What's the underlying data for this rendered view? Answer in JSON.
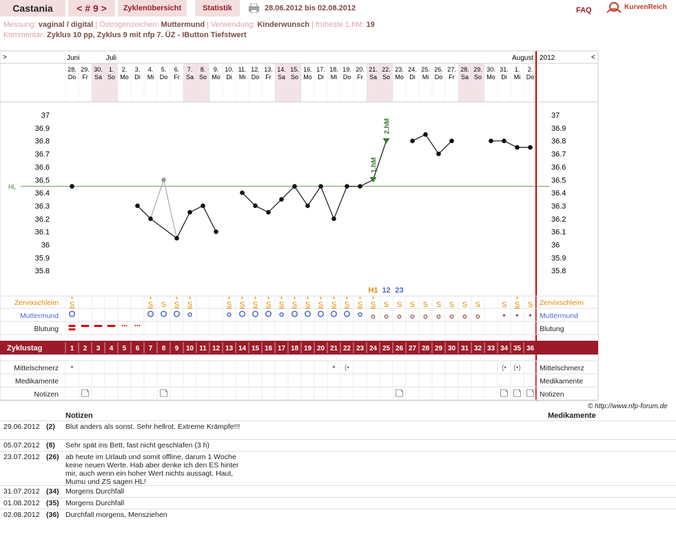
{
  "header": {
    "user": "Castania",
    "cycle_nav": "< # 9 >",
    "tab_overview": "Zyklenübersicht",
    "tab_stats": "Statistik",
    "date_range": "28.06.2012 bis 02.08.2012",
    "faq": "FAQ",
    "logo": "KurvenReich"
  },
  "info": {
    "messung_label": "Messung:",
    "messung_value": "vaginal / digital",
    "oestrogen_label": "Östrogenzeichen:",
    "oestrogen_value": "Muttermund",
    "verwendung_label": "Verwendung:",
    "verwendung_value": "Kinderwunsch",
    "fhm_label": "früheste 1.hM:",
    "fhm_value": "19",
    "kommentar_label": "Kommentar:",
    "kommentar_value": "Zyklus 10 pp, Zyklus 9 mit nfp 7. ÜZ - IButton Tiefstwert"
  },
  "calendar": {
    "left_arrow": ">",
    "right_arrow": "<",
    "months": [
      {
        "label": "Juni",
        "at": 0
      },
      {
        "label": "Juli",
        "at": 3
      },
      {
        "label": "August",
        "at": 34
      }
    ],
    "year": "2012",
    "days": [
      "28.",
      "29.",
      "30.",
      "1.",
      "2.",
      "3.",
      "4.",
      "5.",
      "6.",
      "7.",
      "8.",
      "9.",
      "10.",
      "11.",
      "12.",
      "13.",
      "14.",
      "15.",
      "16.",
      "17.",
      "18.",
      "19.",
      "20.",
      "21.",
      "22.",
      "23.",
      "24.",
      "25.",
      "26.",
      "27.",
      "28.",
      "29.",
      "30.",
      "31.",
      "1.",
      "2."
    ],
    "weekdays": [
      "Do",
      "Fr",
      "Sa",
      "So",
      "Mo",
      "Di",
      "Mi",
      "Do",
      "Fr",
      "Sa",
      "So",
      "Mo",
      "Di",
      "Mi",
      "Do",
      "Fr",
      "Sa",
      "So",
      "Mo",
      "Di",
      "Mi",
      "Do",
      "Fr",
      "Sa",
      "So",
      "Mo",
      "Di",
      "Mi",
      "Do",
      "Fr",
      "Sa",
      "So",
      "Mo",
      "Di",
      "Mi",
      "Do"
    ],
    "weekend": [
      2,
      3,
      9,
      10,
      16,
      17,
      23,
      24,
      30,
      31
    ]
  },
  "chart_data": {
    "type": "line",
    "ylim": [
      35.7,
      37.0
    ],
    "yticks": [
      "37",
      "36.9",
      "36.8",
      "36.7",
      "36.6",
      "36.5",
      "36.4",
      "36.3",
      "36.2",
      "36.1",
      "36",
      "35.9",
      "35.8"
    ],
    "hl_label": "HL",
    "hl_value": 36.45,
    "temps": [
      36.45,
      null,
      null,
      null,
      null,
      36.3,
      36.2,
      36.5,
      36.05,
      36.25,
      36.3,
      36.1,
      null,
      36.4,
      36.3,
      36.25,
      36.35,
      36.45,
      36.3,
      36.45,
      36.2,
      36.45,
      36.45,
      36.5,
      36.8,
      null,
      36.8,
      36.85,
      36.7,
      36.8,
      null,
      null,
      36.8,
      36.8,
      36.75,
      36.75
    ],
    "excluded": [
      7
    ],
    "hm_markers": [
      {
        "day": 24,
        "label": "1.hM"
      },
      {
        "day": 25,
        "label": "2.hM"
      }
    ],
    "zs_markers": [
      {
        "day": 24,
        "label": "H1"
      },
      {
        "day": 25,
        "label": "12"
      },
      {
        "day": 26,
        "label": "23"
      }
    ]
  },
  "rows": {
    "zervix_label": "Zervixschleim",
    "zervix": [
      "S+",
      "",
      "",
      "",
      "",
      "",
      "S+",
      "S",
      "S+",
      "S+",
      "",
      "",
      "S+",
      "S+",
      "S+",
      "S+",
      "S+",
      "S+",
      "S+",
      "S+",
      "S+",
      "S+",
      "S+",
      "S+",
      "S",
      "S",
      "S",
      "S",
      "S",
      "S",
      "S",
      "S",
      "",
      "S",
      "S+",
      "S"
    ],
    "muttermund_label": "Muttermund",
    "blutung_label": "Blutung",
    "zyklustag_label": "Zyklustag",
    "cycle_days": [
      "1",
      "2",
      "3",
      "4",
      "5",
      "6",
      "7",
      "8",
      "9",
      "10",
      "11",
      "12",
      "13",
      "14",
      "15",
      "16",
      "17",
      "18",
      "19",
      "20",
      "21",
      "22",
      "23",
      "24",
      "25",
      "26",
      "27",
      "28",
      "29",
      "30",
      "31",
      "32",
      "33",
      "34",
      "35",
      "36"
    ],
    "mittelschmerz_label": "Mittelschmerz",
    "medikamente_label": "Medikamente",
    "notizen_label": "Notizen"
  },
  "copyright": "© http://www.nfp-forum.de",
  "notes": {
    "col_notes": "Notizen",
    "col_meds": "Medikamente",
    "entries": [
      {
        "date": "29.06.2012",
        "day": "(2)",
        "text": "Blut anders als sonst. Sehr hellrot. Extreme Krämpfe!!!"
      },
      {
        "date": "05.07.2012",
        "day": "(8)",
        "text": "Sehr spät ins Bett, fast nicht geschlafen (3 h)"
      },
      {
        "date": "23.07.2012",
        "day": "(26)",
        "text": "ab heute im Urlaub und somit offline, darum 1 Woche keine neuen Werte. Hab aber denke ich den ES hinter mir, auch wenn ein hoher Wert nichts aussagt. Haut, Mumu und ZS sagen HL!"
      },
      {
        "date": "31.07.2012",
        "day": "(34)",
        "text": "Morgens Durchfall"
      },
      {
        "date": "01.08.2012",
        "day": "(35)",
        "text": "Morgens Durchfall"
      },
      {
        "date": "02.08.2012",
        "day": "(36)",
        "text": "Durchfall morgens, Mensziehen"
      }
    ]
  }
}
